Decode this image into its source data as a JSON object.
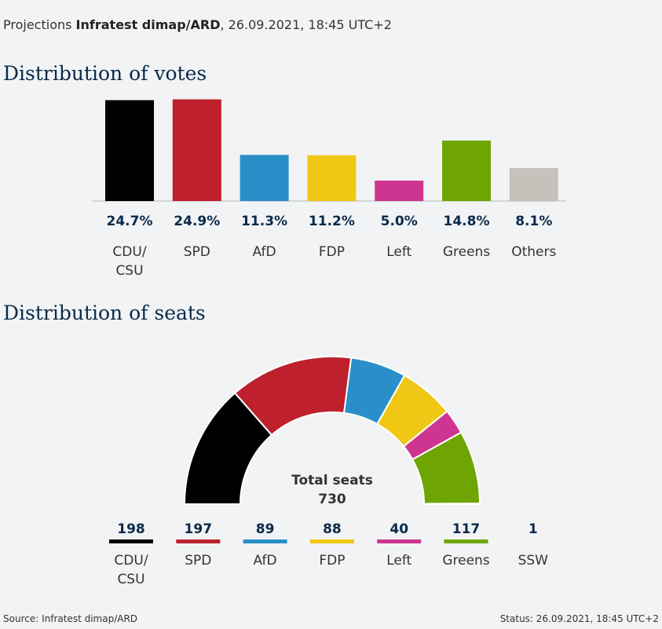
{
  "header": {
    "prefix": "Projections",
    "source": "Infratest dimap/ARD",
    "suffix": ", 26.09.2021, 18:45 UTC+2"
  },
  "chart_data": [
    {
      "type": "bar",
      "title": "Distribution of votes",
      "categories": [
        "CDU/\nCSU",
        "SPD",
        "AfD",
        "FDP",
        "Left",
        "Greens",
        "Others"
      ],
      "values": [
        24.7,
        24.9,
        11.3,
        11.2,
        5.0,
        14.8,
        8.1
      ],
      "value_labels": [
        "24.7%",
        "24.9%",
        "11.3%",
        "11.2%",
        "5.0%",
        "14.8%",
        "8.1%"
      ],
      "colors": [
        "#000000",
        "#be202e",
        "#2a8fc9",
        "#f0c715",
        "#cd3591",
        "#6ea502",
        "#c5c1bb"
      ],
      "grid": false,
      "ylim": [
        0,
        25
      ]
    },
    {
      "type": "pie",
      "subtype": "semicircle",
      "title": "Distribution of seats",
      "categories": [
        "CDU/\nCSU",
        "SPD",
        "AfD",
        "FDP",
        "Left",
        "Greens",
        "SSW"
      ],
      "values": [
        198,
        197,
        89,
        88,
        40,
        117,
        1
      ],
      "colors": [
        "#000000",
        "#be202e",
        "#2a8fc9",
        "#f0c715",
        "#cd3591",
        "#6ea502",
        "#6ea502"
      ],
      "total_label": "Total seats",
      "total_value": "730"
    }
  ],
  "footer": {
    "source": "Source: Infratest dimap/ARD",
    "status": "Status: 26.09.2021, 18:45 UTC+2"
  }
}
